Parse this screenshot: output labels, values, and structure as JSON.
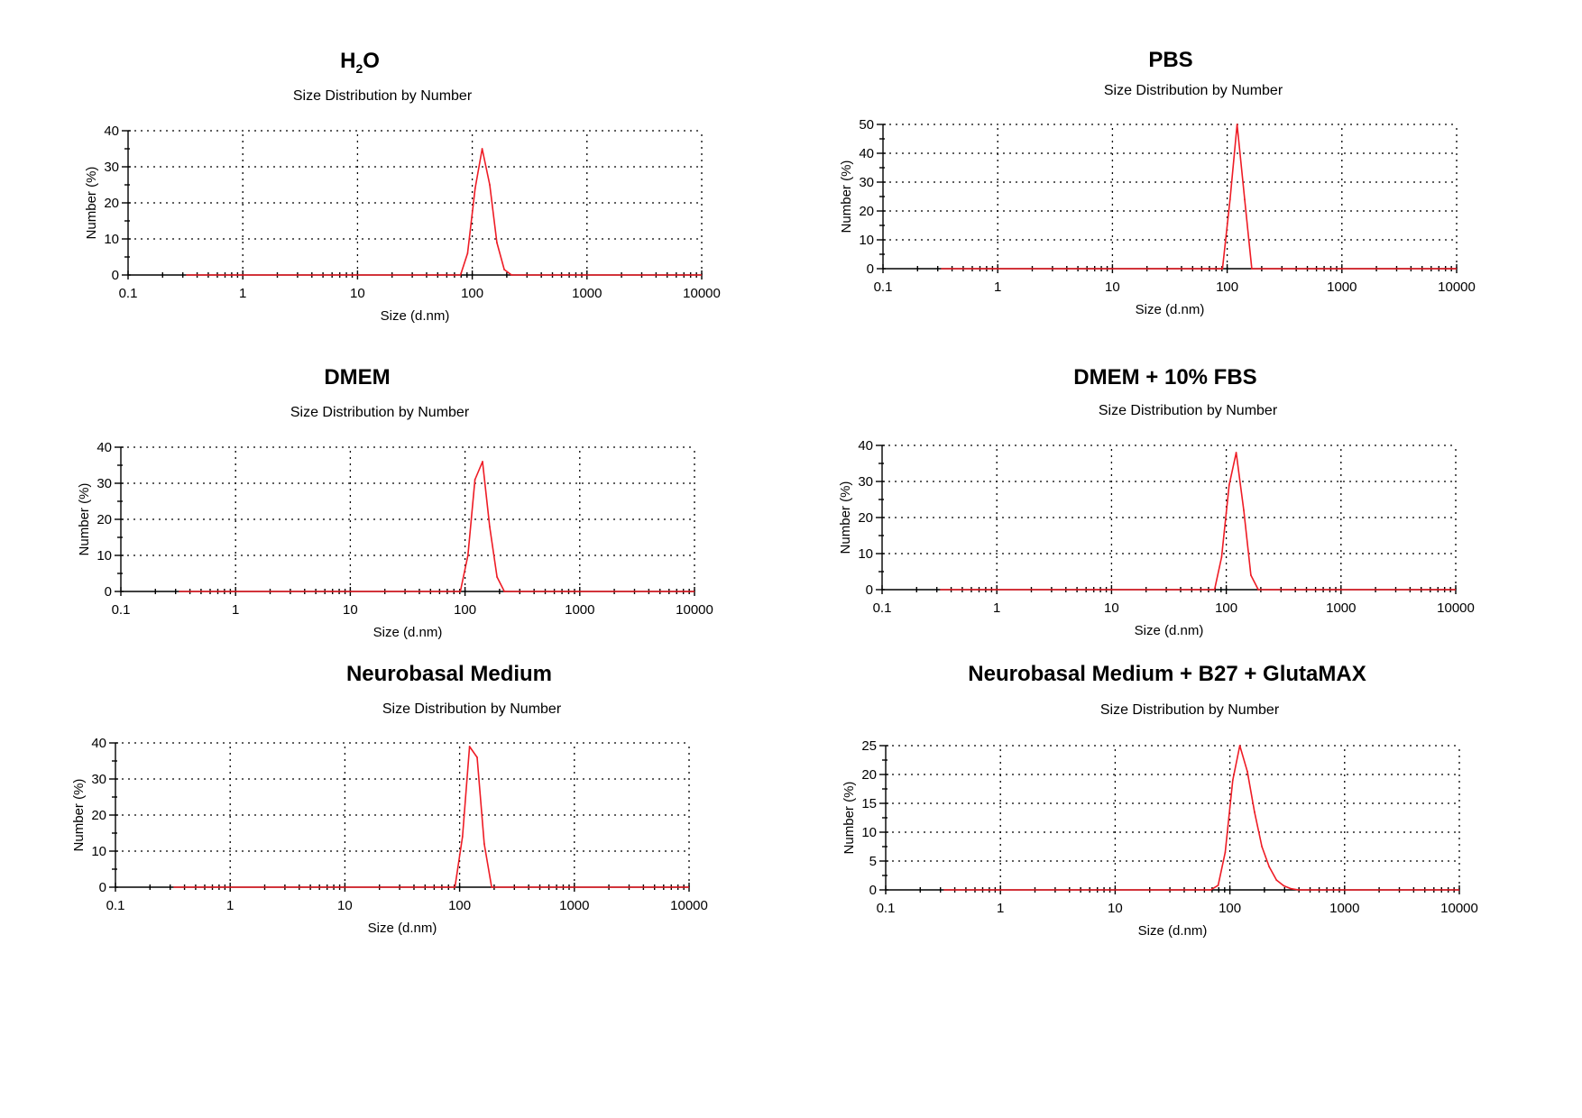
{
  "colors": {
    "series": "#ee1c25",
    "axis": "#000000",
    "baseline": "#000000"
  },
  "chart_data": [
    {
      "type": "line",
      "title": "H2O",
      "title_main": "H",
      "title_sub": "2",
      "title_tail": "O",
      "subtitle": "Size Distribution by Number",
      "xlabel": "Size (d.nm)",
      "ylabel": "Number (%)",
      "xscale": "log",
      "xlim": [
        0.1,
        10000
      ],
      "ylim": [
        0,
        40
      ],
      "xticks": [
        "0.1",
        "1",
        "10",
        "100",
        "1000",
        "10000"
      ],
      "yticks": [
        "0",
        "10",
        "20",
        "30",
        "40"
      ],
      "grid": true,
      "series": [
        {
          "x": [
            79,
            91,
            106,
            122,
            142,
            164,
            190,
            220
          ],
          "y": [
            0,
            6,
            24,
            35,
            25,
            9,
            1.5,
            0
          ]
        }
      ]
    },
    {
      "type": "line",
      "title": "PBS",
      "subtitle": "Size Distribution by Number",
      "xlabel": "Size (d.nm)",
      "ylabel": "Number (%)",
      "xscale": "log",
      "xlim": [
        0.1,
        10000
      ],
      "ylim": [
        0,
        50
      ],
      "xticks": [
        "0.1",
        "1",
        "10",
        "100",
        "1000",
        "10000"
      ],
      "yticks": [
        "0",
        "10",
        "20",
        "30",
        "40",
        "50"
      ],
      "grid": true,
      "series": [
        {
          "x": [
            91,
            106,
            122,
            142,
            164
          ],
          "y": [
            0,
            24,
            50,
            24,
            0
          ]
        }
      ]
    },
    {
      "type": "line",
      "title": "DMEM",
      "subtitle": "Size Distribution by Number",
      "xlabel": "Size (d.nm)",
      "ylabel": "Number (%)",
      "xscale": "log",
      "xlim": [
        0.1,
        10000
      ],
      "ylim": [
        0,
        40
      ],
      "xticks": [
        "0.1",
        "1",
        "10",
        "100",
        "1000",
        "10000"
      ],
      "yticks": [
        "0",
        "10",
        "20",
        "30",
        "40"
      ],
      "grid": true,
      "series": [
        {
          "x": [
            91,
            106,
            122,
            142,
            164,
            190,
            220
          ],
          "y": [
            0,
            10,
            31,
            36,
            18,
            4,
            0
          ]
        }
      ]
    },
    {
      "type": "line",
      "title": "DMEM + 10% FBS",
      "subtitle": "Size Distribution by Number",
      "xlabel": "Size (d.nm)",
      "ylabel": "Number (%)",
      "xscale": "log",
      "xlim": [
        0.1,
        10000
      ],
      "ylim": [
        0,
        40
      ],
      "xticks": [
        "0.1",
        "1",
        "10",
        "100",
        "1000",
        "10000"
      ],
      "yticks": [
        "0",
        "10",
        "20",
        "30",
        "40"
      ],
      "grid": true,
      "series": [
        {
          "x": [
            79,
            91,
            106,
            122,
            142,
            164,
            190
          ],
          "y": [
            0,
            9,
            29,
            38,
            22,
            4,
            0
          ]
        }
      ]
    },
    {
      "type": "line",
      "title": "Neurobasal Medium",
      "subtitle": "Size Distribution by Number",
      "xlabel": "Size (d.nm)",
      "ylabel": "Number (%)",
      "xscale": "log",
      "xlim": [
        0.1,
        10000
      ],
      "ylim": [
        0,
        40
      ],
      "xticks": [
        "0.1",
        "1",
        "10",
        "100",
        "1000",
        "10000"
      ],
      "yticks": [
        "0",
        "10",
        "20",
        "30",
        "40"
      ],
      "grid": true,
      "series": [
        {
          "x": [
            91,
            106,
            122,
            142,
            164,
            190
          ],
          "y": [
            0,
            14,
            39,
            36,
            12,
            0
          ]
        }
      ]
    },
    {
      "type": "line",
      "title": "Neurobasal Medium + B27 + GlutaMAX",
      "subtitle": "Size Distribution by Number",
      "xlabel": "Size (d.nm)",
      "ylabel": "Number (%)",
      "xscale": "log",
      "xlim": [
        0.1,
        10000
      ],
      "ylim": [
        0,
        25
      ],
      "xticks": [
        "0.1",
        "1",
        "10",
        "100",
        "1000",
        "10000"
      ],
      "yticks": [
        "0",
        "5",
        "10",
        "15",
        "20",
        "25"
      ],
      "grid": true,
      "series": [
        {
          "x": [
            68,
            79,
            91,
            106,
            122,
            142,
            164,
            190,
            220,
            255,
            295,
            342,
            396
          ],
          "y": [
            0,
            0.8,
            6.5,
            19,
            25,
            20.5,
            13.5,
            7.5,
            4,
            1.7,
            0.7,
            0.2,
            0
          ]
        }
      ]
    }
  ]
}
